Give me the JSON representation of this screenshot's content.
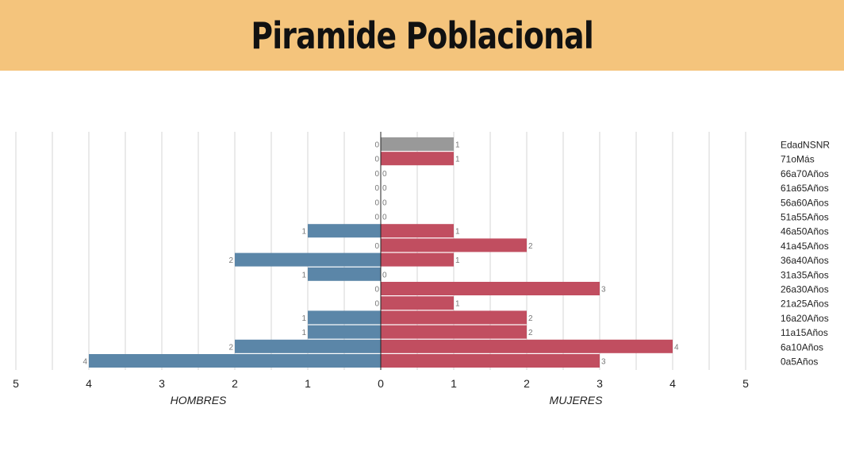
{
  "header": {
    "title": "Piramide Poblacional"
  },
  "colors": {
    "header_bg": "#f4c47c",
    "men": "#5b86a8",
    "women": "#c14e60",
    "unknown": "#999999"
  },
  "chart_data": {
    "type": "bar",
    "orientation": "horizontal-pyramid",
    "title": "Piramide Poblacional",
    "categories": [
      "EdadNSNR",
      "71oMás",
      "66a70Años",
      "61a65Años",
      "56a60Años",
      "51a55Años",
      "46a50Años",
      "41a45Años",
      "36a40Años",
      "31a35Años",
      "26a30Años",
      "21a25Años",
      "16a20Años",
      "11a15Años",
      "6a10Años",
      "0a5Años"
    ],
    "series": [
      {
        "name": "HOMBRES",
        "values": [
          0,
          0,
          0,
          0,
          0,
          0,
          1,
          0,
          2,
          1,
          0,
          0,
          1,
          1,
          2,
          4
        ]
      },
      {
        "name": "MUJERES",
        "values": [
          1,
          1,
          0,
          0,
          0,
          0,
          1,
          2,
          1,
          0,
          3,
          1,
          2,
          2,
          4,
          3
        ]
      }
    ],
    "left_xlabel": "HOMBRES",
    "right_xlabel": "MUJERES",
    "xlim": [
      0,
      5
    ],
    "x_ticks": [
      5,
      4,
      3,
      2,
      1,
      0,
      1,
      2,
      3,
      4,
      5
    ],
    "grid": true,
    "legend": "none"
  }
}
